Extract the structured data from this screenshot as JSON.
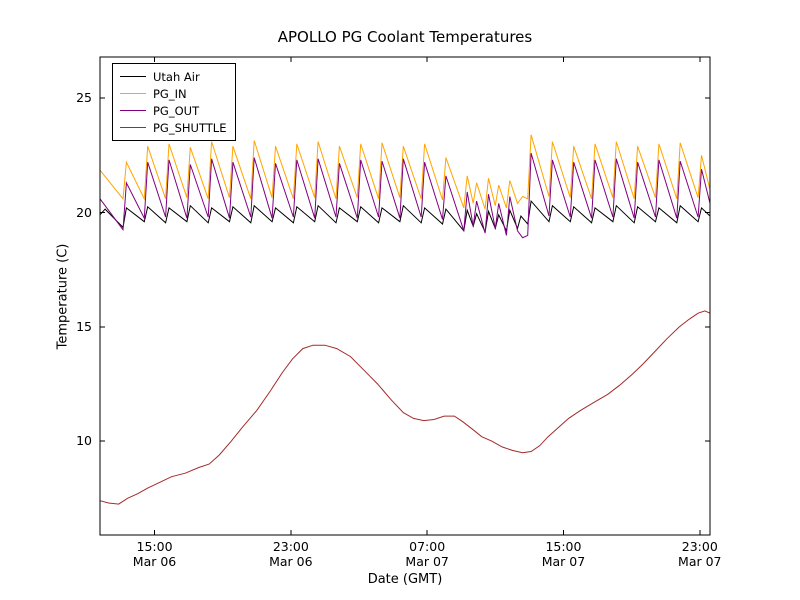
{
  "chart_data": {
    "type": "line",
    "title": "APOLLO PG Coolant Temperatures",
    "xlabel": "Date (GMT)",
    "ylabel": "Temperature (C)",
    "grid": false,
    "legend_position": "upper left",
    "x_axis_note": "x values are hours relative to Mar 06 00:00 GMT",
    "xlim": [
      11.8,
      47.6
    ],
    "ylim": [
      5.9,
      26.8
    ],
    "y_ticks": [
      10,
      15,
      20,
      25
    ],
    "x_ticks": [
      {
        "t": 15,
        "time": "15:00",
        "date": "Mar 06"
      },
      {
        "t": 23,
        "time": "23:00",
        "date": "Mar 06"
      },
      {
        "t": 31,
        "time": "07:00",
        "date": "Mar 07"
      },
      {
        "t": 39,
        "time": "15:00",
        "date": "Mar 07"
      },
      {
        "t": 47,
        "time": "23:00",
        "date": "Mar 07"
      }
    ],
    "series": [
      {
        "name": "Utah Air",
        "color": "#000000",
        "points": [
          [
            11.8,
            19.9
          ],
          [
            12.1,
            20.15
          ],
          [
            13.15,
            19.35
          ],
          [
            13.35,
            20.2
          ],
          [
            14.4,
            19.6
          ],
          [
            14.6,
            20.25
          ],
          [
            15.65,
            19.55
          ],
          [
            15.85,
            20.2
          ],
          [
            16.9,
            19.6
          ],
          [
            17.1,
            20.3
          ],
          [
            18.15,
            19.55
          ],
          [
            18.35,
            20.2
          ],
          [
            19.4,
            19.6
          ],
          [
            19.6,
            20.25
          ],
          [
            20.65,
            19.55
          ],
          [
            20.85,
            20.3
          ],
          [
            21.9,
            19.6
          ],
          [
            22.1,
            20.2
          ],
          [
            23.15,
            19.55
          ],
          [
            23.35,
            20.25
          ],
          [
            24.4,
            19.6
          ],
          [
            24.6,
            20.3
          ],
          [
            25.65,
            19.55
          ],
          [
            25.85,
            20.2
          ],
          [
            26.9,
            19.6
          ],
          [
            27.1,
            20.25
          ],
          [
            28.15,
            19.55
          ],
          [
            28.35,
            20.2
          ],
          [
            29.4,
            19.6
          ],
          [
            29.6,
            20.3
          ],
          [
            30.65,
            19.55
          ],
          [
            30.85,
            20.2
          ],
          [
            31.9,
            19.5
          ],
          [
            32.1,
            20.15
          ],
          [
            33.15,
            19.2
          ],
          [
            33.35,
            20.1
          ],
          [
            33.7,
            19.4
          ],
          [
            33.9,
            19.95
          ],
          [
            34.4,
            19.15
          ],
          [
            34.6,
            20.05
          ],
          [
            35.0,
            19.3
          ],
          [
            35.2,
            19.9
          ],
          [
            35.65,
            19.2
          ],
          [
            35.85,
            20.1
          ],
          [
            36.3,
            19.3
          ],
          [
            36.5,
            19.85
          ],
          [
            36.9,
            19.5
          ],
          [
            37.1,
            20.5
          ],
          [
            38.15,
            19.6
          ],
          [
            38.35,
            20.3
          ],
          [
            39.4,
            19.6
          ],
          [
            39.6,
            20.25
          ],
          [
            40.65,
            19.55
          ],
          [
            40.85,
            20.2
          ],
          [
            41.9,
            19.6
          ],
          [
            42.1,
            20.3
          ],
          [
            43.15,
            19.55
          ],
          [
            43.35,
            20.25
          ],
          [
            44.4,
            19.6
          ],
          [
            44.6,
            20.2
          ],
          [
            45.65,
            19.55
          ],
          [
            45.85,
            20.3
          ],
          [
            46.9,
            19.6
          ],
          [
            47.1,
            20.2
          ],
          [
            47.6,
            19.85
          ]
        ]
      },
      {
        "name": "PG_IN",
        "color": "#ffa500",
        "points": [
          [
            11.8,
            21.85
          ],
          [
            13.15,
            20.6
          ],
          [
            13.35,
            22.2
          ],
          [
            14.4,
            20.6
          ],
          [
            14.6,
            22.9
          ],
          [
            15.65,
            20.6
          ],
          [
            15.85,
            23.0
          ],
          [
            16.9,
            20.65
          ],
          [
            17.1,
            22.85
          ],
          [
            18.15,
            20.6
          ],
          [
            18.35,
            23.1
          ],
          [
            19.4,
            20.65
          ],
          [
            19.6,
            22.9
          ],
          [
            20.65,
            20.6
          ],
          [
            20.85,
            23.15
          ],
          [
            21.9,
            20.65
          ],
          [
            22.1,
            22.9
          ],
          [
            23.15,
            20.6
          ],
          [
            23.35,
            23.0
          ],
          [
            24.4,
            20.65
          ],
          [
            24.6,
            23.1
          ],
          [
            25.65,
            20.6
          ],
          [
            25.85,
            22.9
          ],
          [
            26.9,
            20.65
          ],
          [
            27.1,
            23.0
          ],
          [
            28.15,
            20.6
          ],
          [
            28.35,
            23.05
          ],
          [
            29.4,
            20.65
          ],
          [
            29.6,
            22.9
          ],
          [
            30.65,
            20.6
          ],
          [
            30.85,
            23.0
          ],
          [
            31.9,
            20.55
          ],
          [
            32.1,
            22.4
          ],
          [
            33.15,
            20.2
          ],
          [
            33.35,
            21.6
          ],
          [
            33.7,
            20.4
          ],
          [
            33.9,
            21.3
          ],
          [
            34.4,
            20.15
          ],
          [
            34.6,
            21.5
          ],
          [
            35.0,
            20.3
          ],
          [
            35.2,
            21.2
          ],
          [
            35.65,
            20.2
          ],
          [
            35.85,
            21.4
          ],
          [
            36.3,
            20.4
          ],
          [
            36.6,
            20.7
          ],
          [
            36.9,
            20.6
          ],
          [
            37.1,
            23.4
          ],
          [
            38.15,
            20.7
          ],
          [
            38.35,
            23.1
          ],
          [
            39.4,
            20.65
          ],
          [
            39.6,
            22.9
          ],
          [
            40.65,
            20.6
          ],
          [
            40.85,
            23.0
          ],
          [
            41.9,
            20.65
          ],
          [
            42.1,
            23.1
          ],
          [
            43.15,
            20.6
          ],
          [
            43.35,
            22.9
          ],
          [
            44.4,
            20.65
          ],
          [
            44.6,
            23.0
          ],
          [
            45.65,
            20.6
          ],
          [
            45.85,
            23.05
          ],
          [
            46.9,
            20.65
          ],
          [
            47.1,
            22.5
          ],
          [
            47.6,
            21.0
          ]
        ]
      },
      {
        "name": "PG_OUT",
        "color": "#800080",
        "points": [
          [
            11.8,
            20.6
          ],
          [
            13.15,
            19.25
          ],
          [
            13.35,
            21.3
          ],
          [
            14.4,
            19.75
          ],
          [
            14.6,
            22.2
          ],
          [
            15.65,
            19.8
          ],
          [
            15.85,
            22.3
          ],
          [
            16.9,
            19.75
          ],
          [
            17.1,
            22.1
          ],
          [
            18.15,
            19.8
          ],
          [
            18.35,
            22.35
          ],
          [
            19.4,
            19.75
          ],
          [
            19.6,
            22.2
          ],
          [
            20.65,
            19.8
          ],
          [
            20.85,
            22.4
          ],
          [
            21.9,
            19.75
          ],
          [
            22.1,
            22.15
          ],
          [
            23.15,
            19.8
          ],
          [
            23.35,
            22.3
          ],
          [
            24.4,
            19.75
          ],
          [
            24.6,
            22.35
          ],
          [
            25.65,
            19.8
          ],
          [
            25.85,
            22.15
          ],
          [
            26.9,
            19.75
          ],
          [
            27.1,
            22.3
          ],
          [
            28.15,
            19.8
          ],
          [
            28.35,
            22.25
          ],
          [
            29.4,
            19.75
          ],
          [
            29.6,
            22.35
          ],
          [
            30.65,
            19.8
          ],
          [
            30.85,
            22.2
          ],
          [
            31.9,
            19.7
          ],
          [
            32.1,
            21.6
          ],
          [
            33.15,
            19.2
          ],
          [
            33.35,
            20.9
          ],
          [
            33.7,
            19.4
          ],
          [
            33.9,
            20.5
          ],
          [
            34.4,
            19.1
          ],
          [
            34.6,
            20.8
          ],
          [
            35.0,
            19.3
          ],
          [
            35.2,
            20.4
          ],
          [
            35.65,
            19.0
          ],
          [
            35.85,
            20.7
          ],
          [
            36.3,
            19.2
          ],
          [
            36.6,
            18.9
          ],
          [
            36.9,
            19.0
          ],
          [
            37.1,
            22.6
          ],
          [
            38.15,
            19.85
          ],
          [
            38.35,
            22.3
          ],
          [
            39.4,
            19.8
          ],
          [
            39.6,
            22.2
          ],
          [
            40.65,
            19.75
          ],
          [
            40.85,
            22.3
          ],
          [
            41.9,
            19.8
          ],
          [
            42.1,
            22.35
          ],
          [
            43.15,
            19.75
          ],
          [
            43.35,
            22.2
          ],
          [
            44.4,
            19.8
          ],
          [
            44.6,
            22.3
          ],
          [
            45.65,
            19.75
          ],
          [
            45.85,
            22.25
          ],
          [
            46.9,
            19.8
          ],
          [
            47.1,
            21.9
          ],
          [
            47.6,
            20.4
          ]
        ]
      },
      {
        "name": "PG_SHUTTLE",
        "color": "#a52a2a",
        "points": [
          [
            11.8,
            7.4
          ],
          [
            12.3,
            7.3
          ],
          [
            12.9,
            7.25
          ],
          [
            13.4,
            7.5
          ],
          [
            14.0,
            7.7
          ],
          [
            14.6,
            7.95
          ],
          [
            15.3,
            8.2
          ],
          [
            16.0,
            8.45
          ],
          [
            16.8,
            8.6
          ],
          [
            17.6,
            8.85
          ],
          [
            18.2,
            9.0
          ],
          [
            18.8,
            9.4
          ],
          [
            19.5,
            10.0
          ],
          [
            20.2,
            10.65
          ],
          [
            21.0,
            11.35
          ],
          [
            21.8,
            12.2
          ],
          [
            22.5,
            13.0
          ],
          [
            23.1,
            13.6
          ],
          [
            23.7,
            14.05
          ],
          [
            24.3,
            14.2
          ],
          [
            25.0,
            14.2
          ],
          [
            25.7,
            14.05
          ],
          [
            26.5,
            13.7
          ],
          [
            27.3,
            13.1
          ],
          [
            28.1,
            12.5
          ],
          [
            28.9,
            11.8
          ],
          [
            29.6,
            11.25
          ],
          [
            30.2,
            11.0
          ],
          [
            30.8,
            10.9
          ],
          [
            31.4,
            10.95
          ],
          [
            32.0,
            11.1
          ],
          [
            32.6,
            11.1
          ],
          [
            33.1,
            10.85
          ],
          [
            33.7,
            10.5
          ],
          [
            34.2,
            10.2
          ],
          [
            34.8,
            10.0
          ],
          [
            35.4,
            9.75
          ],
          [
            36.0,
            9.6
          ],
          [
            36.6,
            9.5
          ],
          [
            37.1,
            9.55
          ],
          [
            37.6,
            9.8
          ],
          [
            38.1,
            10.2
          ],
          [
            38.7,
            10.6
          ],
          [
            39.3,
            11.0
          ],
          [
            40.0,
            11.35
          ],
          [
            40.8,
            11.7
          ],
          [
            41.6,
            12.05
          ],
          [
            42.3,
            12.45
          ],
          [
            43.0,
            12.9
          ],
          [
            43.7,
            13.4
          ],
          [
            44.4,
            13.95
          ],
          [
            45.1,
            14.5
          ],
          [
            45.8,
            15.0
          ],
          [
            46.4,
            15.35
          ],
          [
            46.9,
            15.6
          ],
          [
            47.3,
            15.7
          ],
          [
            47.6,
            15.6
          ]
        ]
      }
    ]
  }
}
